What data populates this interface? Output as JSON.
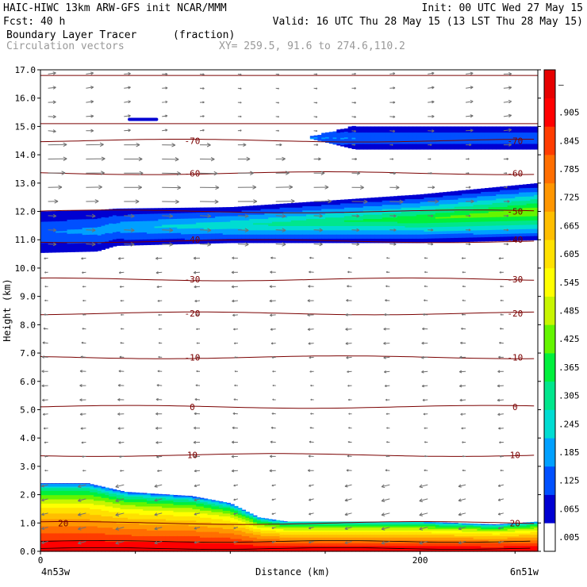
{
  "header": {
    "line1_left": "HAIC-HIWC 13km ARW-GFS init   NCAR/MMM",
    "line1_right": "Init: 00 UTC Wed 27 May 15",
    "line2_left": "Fcst:   40 h",
    "line2_right": "Valid: 16 UTC Thu 28 May 15 (13 LST Thu 28 May 15)",
    "field_name": "Boundary Layer Tracer",
    "field_units": "(fraction)",
    "vectors_label": "Circulation vectors",
    "xy_label": "XY= 259.5, 91.6 to 274.6,110.2"
  },
  "axes": {
    "ylabel": "Height (km)",
    "xlabel": "Distance (km)",
    "left_end_label": "4n53w",
    "right_end_label": "6n51w",
    "y_ticks": [
      "0.0",
      "1.0",
      "2.0",
      "3.0",
      "4.0",
      "5.0",
      "6.0",
      "7.0",
      "8.0",
      "9.0",
      "10.0",
      "11.0",
      "12.0",
      "13.0",
      "14.0",
      "15.0",
      "16.0",
      "17.0"
    ],
    "x_ticks": [
      {
        "value": 0,
        "label": "0"
      },
      {
        "value": 200,
        "label": "200"
      }
    ]
  },
  "colorbar": {
    "labels": [
      ".005",
      ".065",
      ".125",
      ".185",
      ".245",
      ".305",
      ".365",
      ".425",
      ".485",
      ".545",
      ".605",
      ".665",
      ".725",
      ".785",
      ".845",
      ".905",
      "–"
    ],
    "colors": [
      "#ffffff",
      "#0000d2",
      "#0050ff",
      "#00a0ff",
      "#00dcd2",
      "#00e68c",
      "#00f03c",
      "#64f500",
      "#c8f500",
      "#ffff00",
      "#ffe100",
      "#ffbe00",
      "#ff9600",
      "#ff6e00",
      "#ff3c00",
      "#ff0000",
      "#e60000"
    ]
  },
  "isotherm_labels": [
    {
      "text": "-70",
      "x": 80,
      "y": 14.5
    },
    {
      "text": "-70",
      "x": 250,
      "y": 14.5
    },
    {
      "text": "-60",
      "x": 80,
      "y": 13.35
    },
    {
      "text": "-60",
      "x": 250,
      "y": 13.35
    },
    {
      "text": "-50",
      "x": 250,
      "y": 12.0
    },
    {
      "text": "-40",
      "x": 80,
      "y": 11.0
    },
    {
      "text": "-40",
      "x": 250,
      "y": 11.0
    },
    {
      "text": "-30",
      "x": 80,
      "y": 9.6
    },
    {
      "text": "-30",
      "x": 250,
      "y": 9.6
    },
    {
      "text": "-20",
      "x": 80,
      "y": 8.4
    },
    {
      "text": "-20",
      "x": 250,
      "y": 8.4
    },
    {
      "text": "-10",
      "x": 80,
      "y": 6.85
    },
    {
      "text": "-10",
      "x": 250,
      "y": 6.85
    },
    {
      "text": "0",
      "x": 80,
      "y": 5.1
    },
    {
      "text": "0",
      "x": 250,
      "y": 5.1
    },
    {
      "text": "10",
      "x": 80,
      "y": 3.4
    },
    {
      "text": "10",
      "x": 250,
      "y": 3.4
    },
    {
      "text": "20",
      "x": 12,
      "y": 1.0
    },
    {
      "text": "20",
      "x": 250,
      "y": 1.0
    }
  ],
  "chart_data": {
    "type": "heatmap",
    "title": "Boundary Layer Tracer",
    "units": "(fraction)",
    "xlabel": "Distance (km)",
    "ylabel": "Height (km)",
    "xlim": [
      0,
      262
    ],
    "ylim": [
      0,
      17
    ],
    "color_scale_min": 0.005,
    "color_scale_step": 0.06,
    "isotherms_C": [
      {
        "value": 20,
        "height_km": 1.0
      },
      {
        "value": 10,
        "height_km": 3.4
      },
      {
        "value": 0,
        "height_km": 5.1
      },
      {
        "value": -10,
        "height_km": 6.85
      },
      {
        "value": -20,
        "height_km": 8.4
      },
      {
        "value": -30,
        "height_km": 9.6
      },
      {
        "value": -40,
        "height_km": 10.95
      },
      {
        "value": -50,
        "height_km": 12.0
      },
      {
        "value": -60,
        "height_km": 13.35
      },
      {
        "value": -70,
        "height_km": 14.5
      }
    ],
    "boundary_layer": {
      "top_km": [
        {
          "x": 0,
          "z": 2.4
        },
        {
          "x": 25,
          "z": 2.4
        },
        {
          "x": 45,
          "z": 2.1
        },
        {
          "x": 80,
          "z": 1.95
        },
        {
          "x": 100,
          "z": 1.7
        },
        {
          "x": 115,
          "z": 1.2
        },
        {
          "x": 130,
          "z": 1.05
        },
        {
          "x": 200,
          "z": 1.05
        },
        {
          "x": 240,
          "z": 0.95
        },
        {
          "x": 262,
          "z": 1.05
        }
      ],
      "max_fraction": 0.905
    },
    "upper_layer": {
      "band_km": [
        {
          "x": 0,
          "bottom": 10.55,
          "top": 12.0
        },
        {
          "x": 30,
          "bottom": 10.6,
          "top": 12.05
        },
        {
          "x": 40,
          "bottom": 10.8,
          "top": 12.1
        },
        {
          "x": 100,
          "bottom": 10.9,
          "top": 12.15
        },
        {
          "x": 200,
          "bottom": 10.9,
          "top": 12.6
        },
        {
          "x": 262,
          "bottom": 11.0,
          "top": 13.0
        }
      ],
      "max_fraction": 0.425
    },
    "cirrus_patch": {
      "x_start": 140,
      "x_end": 262,
      "bottom_km": 14.2,
      "top_km": 15.0
    },
    "small_patch": {
      "x_start": 46,
      "x_end": 62,
      "z_km": 15.25
    }
  }
}
